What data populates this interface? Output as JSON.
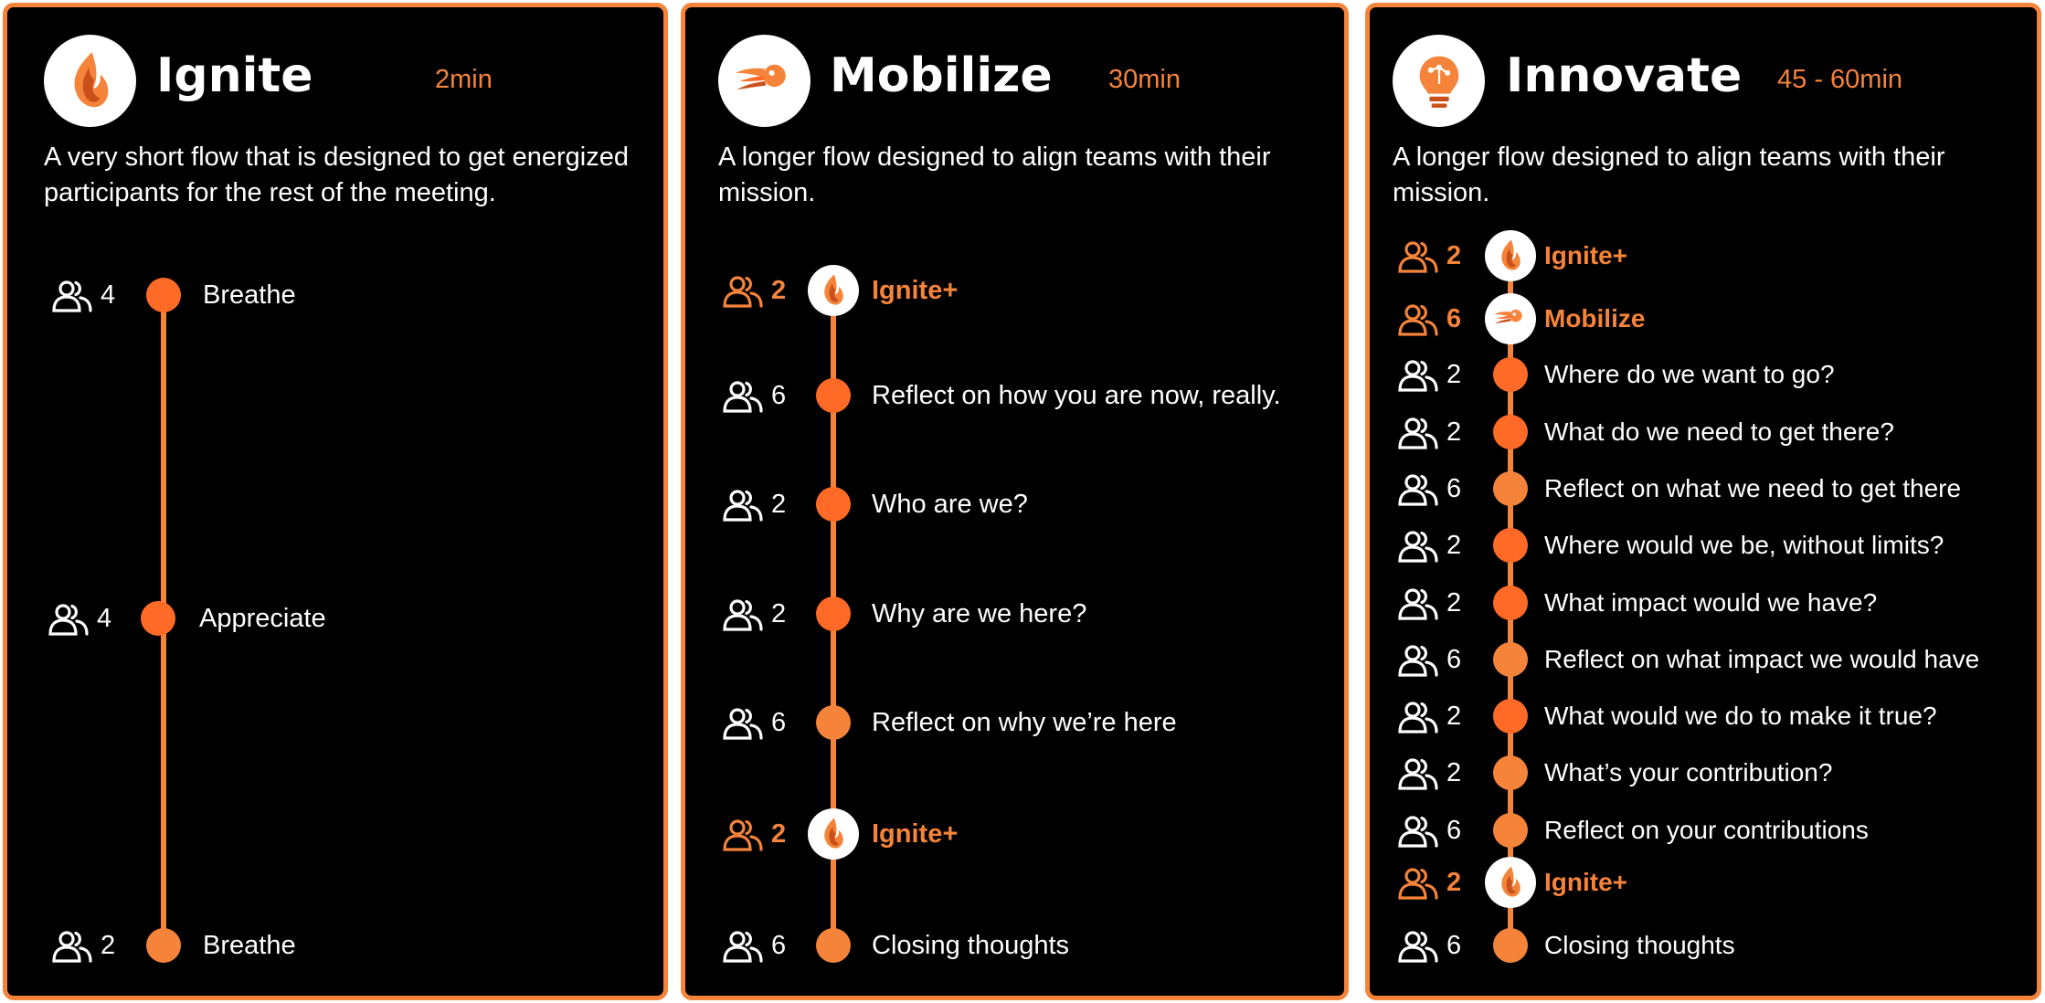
{
  "colors": {
    "accent": "#f5843a",
    "accent_strong": "#ff6a26",
    "card_bg": "#000000",
    "text": "#ffffff"
  },
  "cards": [
    {
      "title": "Ignite",
      "duration": "2min",
      "icon": "flame-icon",
      "description": "A very short flow that is designed to get energized participants for the rest of the meeting.",
      "steps": [
        {
          "count": "4",
          "label": "Breathe"
        },
        {
          "count": "4",
          "label": "Appreciate"
        },
        {
          "count": "2",
          "label": "Breathe"
        }
      ]
    },
    {
      "title": "Mobilize",
      "duration": "30min",
      "icon": "comet-icon",
      "description": "A longer flow designed to align teams with their mission.",
      "steps": [
        {
          "count": "2",
          "label": "Ignite+",
          "special": true
        },
        {
          "count": "6",
          "label": "Reflect on how you are now, really."
        },
        {
          "count": "2",
          "label": "Who are we?"
        },
        {
          "count": "2",
          "label": "Why are we here?"
        },
        {
          "count": "6",
          "label": "Reflect on why we’re here"
        },
        {
          "count": "2",
          "label": "Ignite+",
          "special": true
        },
        {
          "count": "6",
          "label": "Closing thoughts"
        }
      ]
    },
    {
      "title": "Innovate",
      "duration": "45 - 60min",
      "icon": "lightbulb-icon",
      "description": "A longer flow designed to align teams with their mission.",
      "steps": [
        {
          "count": "2",
          "label": "Ignite+",
          "special": true
        },
        {
          "count": "6",
          "label": "Mobilize",
          "special": true
        },
        {
          "count": "2",
          "label": "Where do we want to go?"
        },
        {
          "count": "2",
          "label": "What do we need to get there?"
        },
        {
          "count": "6",
          "label": "Reflect on what we need to get there"
        },
        {
          "count": "2",
          "label": "Where would we be, without limits?"
        },
        {
          "count": "2",
          "label": "What impact would we have?"
        },
        {
          "count": "6",
          "label": "Reflect on what impact we would have"
        },
        {
          "count": "2",
          "label": "What would we do to make it true?"
        },
        {
          "count": "2",
          "label": "What’s your contribution?"
        },
        {
          "count": "6",
          "label": "Reflect on your contributions"
        },
        {
          "count": "2",
          "label": "Ignite+",
          "special": true
        },
        {
          "count": "6",
          "label": "Closing thoughts"
        }
      ]
    }
  ]
}
